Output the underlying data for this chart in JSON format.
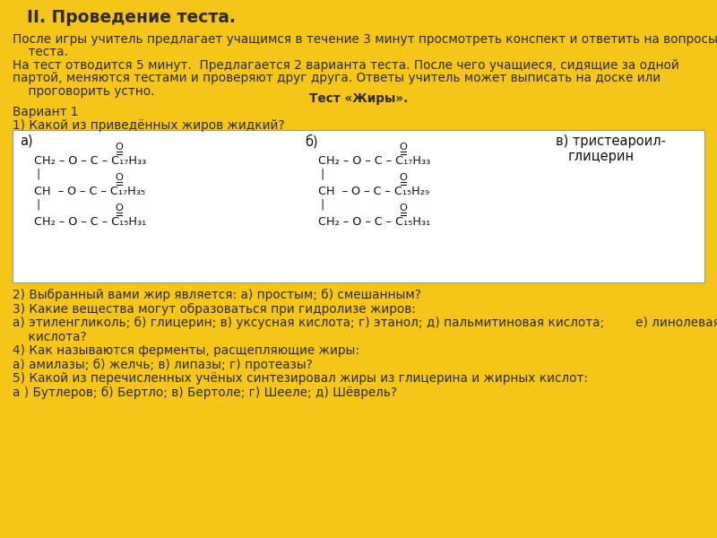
{
  "background_color": "#F5C518",
  "title": "II. Проведение теста.",
  "text_color": "#2D2D2D",
  "formula_color": "#111111",
  "figsize": [
    8.0,
    6.0
  ],
  "dpi": 100,
  "body_lines": [
    "После игры учитель предлагает учащимся в течение 3 минут просмотреть конспект и ответить на вопросы",
    "    теста.",
    "На тест отводится 5 минут.  Предлагается 2 варианта теста. После чего учащиеся, сидящие за одной",
    "партой, меняются тестами и проверяют друг друга. Ответы учитель может выписать на доске или",
    "    проговорить устно."
  ],
  "test_title": "Тест «Жиры».",
  "variant": "Вариант 1",
  "question1": "1) Какой из приведённых жиров жидкий?",
  "bottom_lines": [
    "2) Выбранный вами жир является: а) простым; б) смешанным?",
    "3) Какие вещества могут образоваться при гидролизе жиров:",
    "а) этиленгликоль; б) глицерин; в) уксусная кислота; г) этанол; д) пальмитиновая кислота;        е) линолевая",
    "    кислота?",
    "4) Как называются ферменты, расщепляющие жиры:",
    "а) амилазы; б) желчь; в) липазы; г) протеазы?",
    "5) Какой из перечисленных учёных синтезировал жиры из глицерина и жирных кислот:",
    "а ) Бутлеров; б) Бертло; в) Бертоле; г) Шееле; д) Шёврель?"
  ],
  "formula_a_lines": [
    "CH₂ – O – C – C₁₇H₃₃",
    "CH  – O – C – C₁₇H₃₅",
    "CH₂ – O – C – C₁₅H₃₁"
  ],
  "formula_b_lines": [
    "CH₂ – O – C – C₁₇H₃₃",
    "CH  – O – C – C₁₅H₂₉",
    "CH₂ – O – C – C₁₅H₃₁"
  ]
}
